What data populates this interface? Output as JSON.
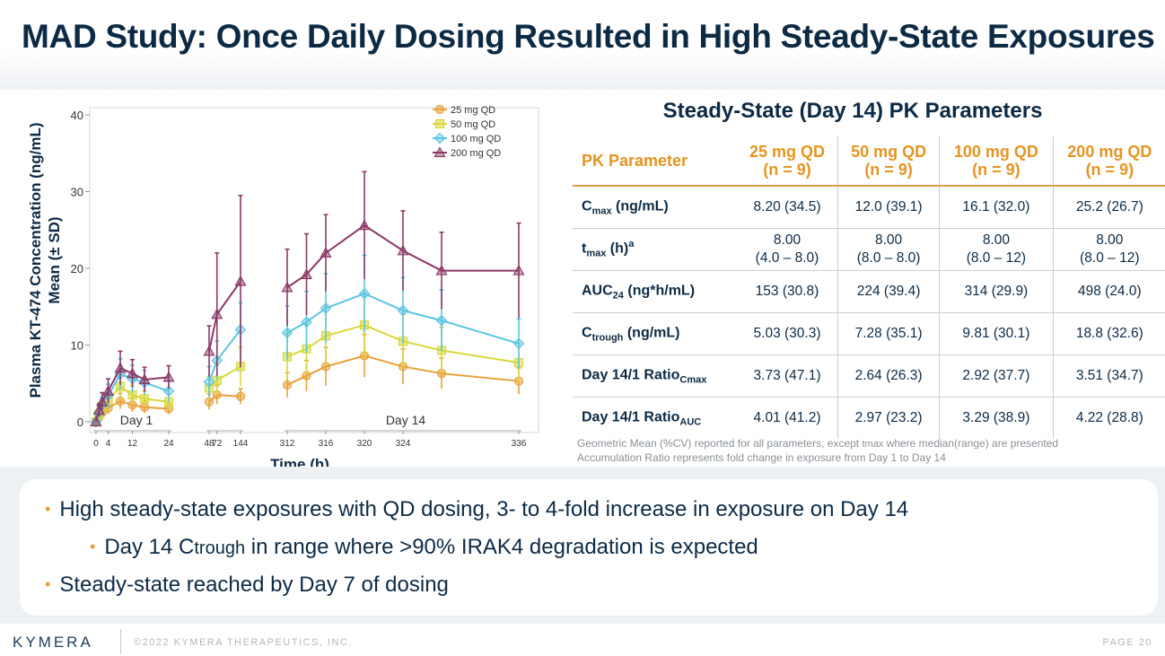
{
  "title": "MAD Study: Once Daily Dosing Resulted in High Steady-State Exposures",
  "colors": {
    "dose25": "#e8a23a",
    "dose50": "#d8d83c",
    "dose100": "#5cc5e4",
    "dose200": "#8b3a66",
    "navy": "#0d2a44",
    "orange": "#e6941f"
  },
  "chart_data": {
    "type": "line",
    "ylabel_line1": "Plasma KT-474 Concentration (ng/mL)",
    "ylabel_line2": "Mean (± SD)",
    "xlabel": "Time (h)",
    "y_ticks": [
      "0",
      "10",
      "20",
      "30",
      "40"
    ],
    "ylim": [
      0,
      40
    ],
    "panels": [
      {
        "label": "Day 1",
        "xlim": [
          0,
          24
        ],
        "ticks": [
          0,
          4,
          12,
          24
        ],
        "tick_labels": [
          "0",
          "4",
          "12",
          "24"
        ]
      },
      {
        "label": "",
        "xlim": [
          48,
          144
        ],
        "ticks": [
          48,
          72,
          144
        ],
        "tick_labels": [
          "48",
          "72",
          "144"
        ]
      },
      {
        "label": "Day 14",
        "xlim": [
          312,
          336
        ],
        "ticks": [
          312,
          316,
          320,
          324,
          336
        ],
        "tick_labels": [
          "312",
          "316",
          "320",
          "324",
          "336"
        ]
      }
    ],
    "legend_position": "top-right",
    "series": [
      {
        "name": "25 mg QD",
        "marker": "circle",
        "segments": [
          {
            "x": [
              0,
              1,
              2,
              4,
              8,
              12,
              16,
              24
            ],
            "y": [
              0,
              0.6,
              1.2,
              1.8,
              2.7,
              2.2,
              1.9,
              1.7
            ],
            "sd": [
              0,
              0.3,
              0.5,
              0.8,
              1.0,
              0.9,
              0.8,
              0.7
            ]
          },
          {
            "x": [
              48,
              72,
              144
            ],
            "y": [
              2.6,
              3.5,
              3.3
            ],
            "sd": [
              1.0,
              1.2,
              1.0
            ]
          },
          {
            "x": [
              312,
              314,
              316,
              320,
              324,
              328,
              336
            ],
            "y": [
              4.8,
              6.0,
              7.2,
              8.6,
              7.2,
              6.3,
              5.3
            ],
            "sd": [
              1.6,
              2.0,
              2.5,
              2.8,
              2.3,
              2.0,
              1.7
            ]
          }
        ]
      },
      {
        "name": "50 mg QD",
        "marker": "square",
        "segments": [
          {
            "x": [
              0,
              1,
              2,
              4,
              8,
              12,
              16,
              24
            ],
            "y": [
              0,
              1.0,
              2.0,
              2.8,
              4.6,
              3.5,
              3.0,
              2.6
            ],
            "sd": [
              0,
              0.5,
              0.8,
              1.0,
              1.6,
              1.2,
              1.0,
              1.0
            ]
          },
          {
            "x": [
              48,
              72,
              144
            ],
            "y": [
              4.4,
              5.4,
              7.2
            ],
            "sd": [
              1.5,
              2.0,
              2.5
            ]
          },
          {
            "x": [
              312,
              314,
              316,
              320,
              324,
              328,
              336
            ],
            "y": [
              8.5,
              9.5,
              11.2,
              12.6,
              10.5,
              9.3,
              7.7
            ],
            "sd": [
              3.0,
              3.2,
              3.8,
              4.2,
              3.5,
              3.0,
              2.5
            ]
          }
        ]
      },
      {
        "name": "100 mg QD",
        "marker": "diamond",
        "segments": [
          {
            "x": [
              0,
              1,
              2,
              4,
              8,
              12,
              16,
              24
            ],
            "y": [
              0,
              1.2,
              2.2,
              3.4,
              6.2,
              5.6,
              5.1,
              4.0
            ],
            "sd": [
              0,
              0.6,
              1.0,
              1.5,
              2.0,
              1.8,
              1.6,
              1.4
            ]
          },
          {
            "x": [
              48,
              72,
              144
            ],
            "y": [
              5.2,
              8.0,
              12.0
            ],
            "sd": [
              2.0,
              2.5,
              3.5
            ]
          },
          {
            "x": [
              312,
              314,
              316,
              320,
              324,
              328,
              336
            ],
            "y": [
              11.6,
              13.0,
              14.8,
              16.7,
              14.5,
              13.2,
              10.2
            ],
            "sd": [
              3.5,
              4.0,
              4.5,
              5.0,
              4.3,
              4.0,
              3.2
            ]
          }
        ]
      },
      {
        "name": "200 mg QD",
        "marker": "triangle",
        "segments": [
          {
            "x": [
              0,
              1,
              2,
              4,
              8,
              12,
              16,
              24
            ],
            "y": [
              0,
              1.5,
              2.6,
              4.0,
              7.0,
              6.3,
              5.5,
              5.8
            ],
            "sd": [
              0,
              0.8,
              1.2,
              1.6,
              2.2,
              1.8,
              1.6,
              1.5
            ]
          },
          {
            "x": [
              48,
              72,
              144
            ],
            "y": [
              9.2,
              14.0,
              18.3
            ],
            "sd": [
              3.3,
              8.0,
              11.2
            ]
          },
          {
            "x": [
              312,
              314,
              316,
              320,
              324,
              328,
              336
            ],
            "y": [
              17.5,
              19.2,
              22.0,
              25.6,
              22.3,
              19.7,
              19.7
            ],
            "sd": [
              5.0,
              5.3,
              5.0,
              7.0,
              5.2,
              5.0,
              6.2
            ]
          }
        ]
      }
    ]
  },
  "table": {
    "title": "Steady-State (Day 14) PK Parameters",
    "header": {
      "param": "PK Parameter",
      "cols": [
        {
          "dose": "25 mg QD",
          "n": "(n = 9)"
        },
        {
          "dose": "50 mg QD",
          "n": "(n = 9)"
        },
        {
          "dose": "100 mg QD",
          "n": "(n = 9)"
        },
        {
          "dose": "200 mg QD",
          "n": "(n = 9)"
        }
      ]
    },
    "rows": [
      {
        "p_main": "C",
        "p_sub": "max",
        "p_sup": "",
        "p_tail": " (ng/mL)",
        "values": [
          "8.20 (34.5)",
          "12.0 (39.1)",
          "16.1 (32.0)",
          "25.2 (26.7)"
        ],
        "values2": [
          "",
          "",
          "",
          ""
        ]
      },
      {
        "p_main": "t",
        "p_sub": "max",
        "p_sup": "a",
        "p_tail": " (h)",
        "values": [
          "8.00",
          "8.00",
          "8.00",
          "8.00"
        ],
        "values2": [
          "(4.0 – 8.0)",
          "(8.0 – 8.0)",
          "(8.0 – 12)",
          "(8.0 – 12)"
        ]
      },
      {
        "p_main": "AUC",
        "p_sub": "24",
        "p_sup": "",
        "p_tail": " (ng*h/mL)",
        "values": [
          "153 (30.8)",
          "224 (39.4)",
          "314 (29.9)",
          "498 (24.0)"
        ],
        "values2": [
          "",
          "",
          "",
          ""
        ]
      },
      {
        "p_main": "C",
        "p_sub": "trough",
        "p_sup": "",
        "p_tail": " (ng/mL)",
        "values": [
          "5.03 (30.3)",
          "7.28 (35.1)",
          "9.81 (30.1)",
          "18.8 (32.6)"
        ],
        "values2": [
          "",
          "",
          "",
          ""
        ]
      },
      {
        "p_main": "Day 14/1 Ratio",
        "p_sub": "Cmax",
        "p_sup": "",
        "p_tail": "",
        "values": [
          "3.73 (47.1)",
          "2.64 (26.3)",
          "2.92 (37.7)",
          "3.51 (34.7)"
        ],
        "values2": [
          "",
          "",
          "",
          ""
        ]
      },
      {
        "p_main": "Day 14/1 Ratio",
        "p_sub": "AUC",
        "p_sup": "",
        "p_tail": "",
        "values": [
          "4.01 (41.2)",
          "2.97 (23.2)",
          "3.29 (38.9)",
          "4.22 (28.8)"
        ],
        "values2": [
          "",
          "",
          "",
          ""
        ]
      }
    ],
    "footnote1_a": "Geometric Mean (%CV) reported for all parameters, except ",
    "footnote1_b": "tmax",
    "footnote1_c": " where median(range) are presented",
    "footnote2": "Accumulation Ratio represents fold change in exposure from Day 1 to Day 14"
  },
  "bullets": {
    "b1": "High steady-state exposures with QD dosing, 3- to 4-fold increase in exposure on Day 14",
    "b2_a": "Day 14 C",
    "b2_b": "trough",
    "b2_c": " in range where >90% IRAK4 degradation is expected",
    "b3": "Steady-state reached by Day 7 of dosing"
  },
  "footer": {
    "logo": "KYMERA",
    "copyright": "©2022 KYMERA THERAPEUTICS, INC.",
    "page": "PAGE 20"
  }
}
